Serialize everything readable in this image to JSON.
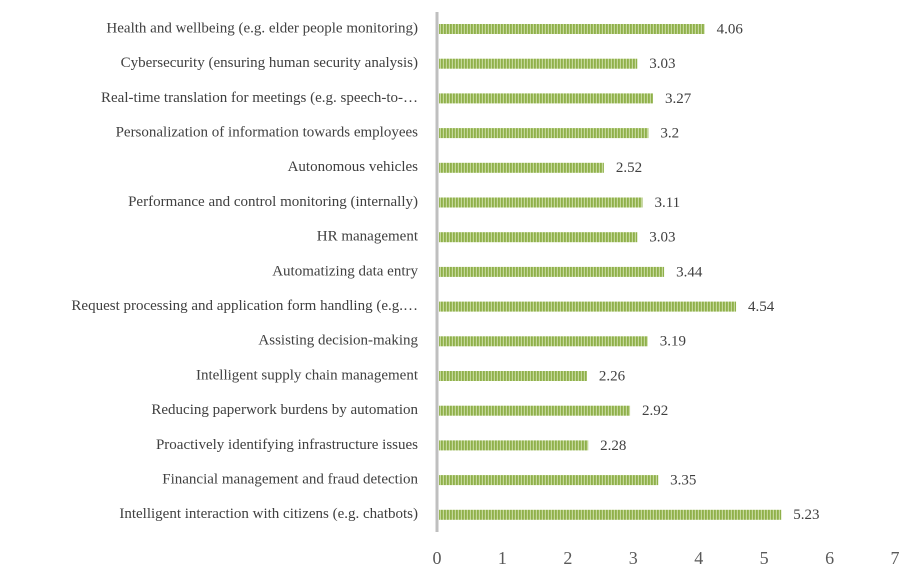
{
  "chart_data": {
    "type": "bar",
    "orientation": "horizontal",
    "categories": [
      "Health and wellbeing (e.g. elder people monitoring)",
      "Cybersecurity (ensuring human security analysis)",
      "Real-time translation for meetings (e.g. speech-to-…",
      "Personalization of information towards employees",
      "Autonomous vehicles",
      "Performance and control monitoring (internally)",
      "HR management",
      "Automatizing data entry",
      "Request processing and application form handling (e.g.…",
      "Assisting decision-making",
      "Intelligent supply chain management",
      "Reducing paperwork burdens by automation",
      "Proactively identifying infrastructure issues",
      "Financial management and fraud detection",
      "Intelligent interaction with citizens (e.g. chatbots)"
    ],
    "values": [
      4.06,
      3.03,
      3.27,
      3.2,
      2.52,
      3.11,
      3.03,
      3.44,
      4.54,
      3.19,
      2.26,
      2.92,
      2.28,
      3.35,
      5.23
    ],
    "color": "#9bbb59",
    "xlim": [
      0,
      7
    ],
    "xticks": [
      0,
      1,
      2,
      3,
      4,
      5,
      6,
      7
    ],
    "grid": false
  }
}
